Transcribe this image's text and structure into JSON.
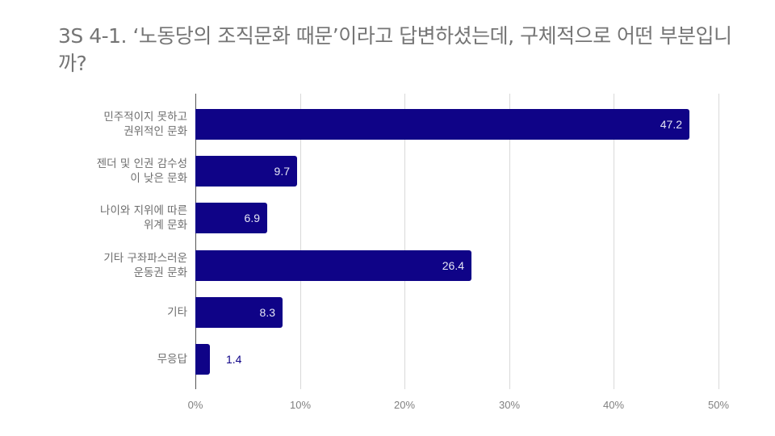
{
  "title": "3S 4-1. ‘노동당의 조직문화 때문’이라고 답변하셨는데, 구체적으로 어떤 부분입니까?",
  "colors": {
    "bar": "#0f0387",
    "grid": "#d9d9d9",
    "text": "#757575"
  },
  "chart_data": {
    "type": "bar",
    "orientation": "horizontal",
    "title": "3S 4-1. ‘노동당의 조직문화 때문’이라고 답변하셨는데, 구체적으로 어떤 부분입니까?",
    "categories": [
      "민주적이지 못하고 권위적인 문화",
      "젠더 및 인권 감수성이 낮은 문화",
      "나이와 지위에 따른 위계 문화",
      "기타 구좌파스러운 운동권 문화",
      "기타",
      "무응답"
    ],
    "category_labels_display": [
      "민주적이지 못하고\n권위적인 문화",
      "젠더 및 인권 감수성\n이 낮은 문화",
      "나이와 지위에 따른\n위계 문화",
      "기타 구좌파스러운\n운동권 문화",
      "기타",
      "무응답"
    ],
    "values": [
      47.2,
      9.7,
      6.9,
      26.4,
      8.3,
      1.4
    ],
    "value_labels": [
      "47.2",
      "9.7",
      "6.9",
      "26.4",
      "8.3",
      "1.4"
    ],
    "xlabel": "",
    "ylabel": "",
    "xlim": [
      0,
      50
    ],
    "xticks": [
      "0%",
      "10%",
      "20%",
      "30%",
      "40%",
      "50%"
    ],
    "grid": true,
    "legend": "none"
  }
}
